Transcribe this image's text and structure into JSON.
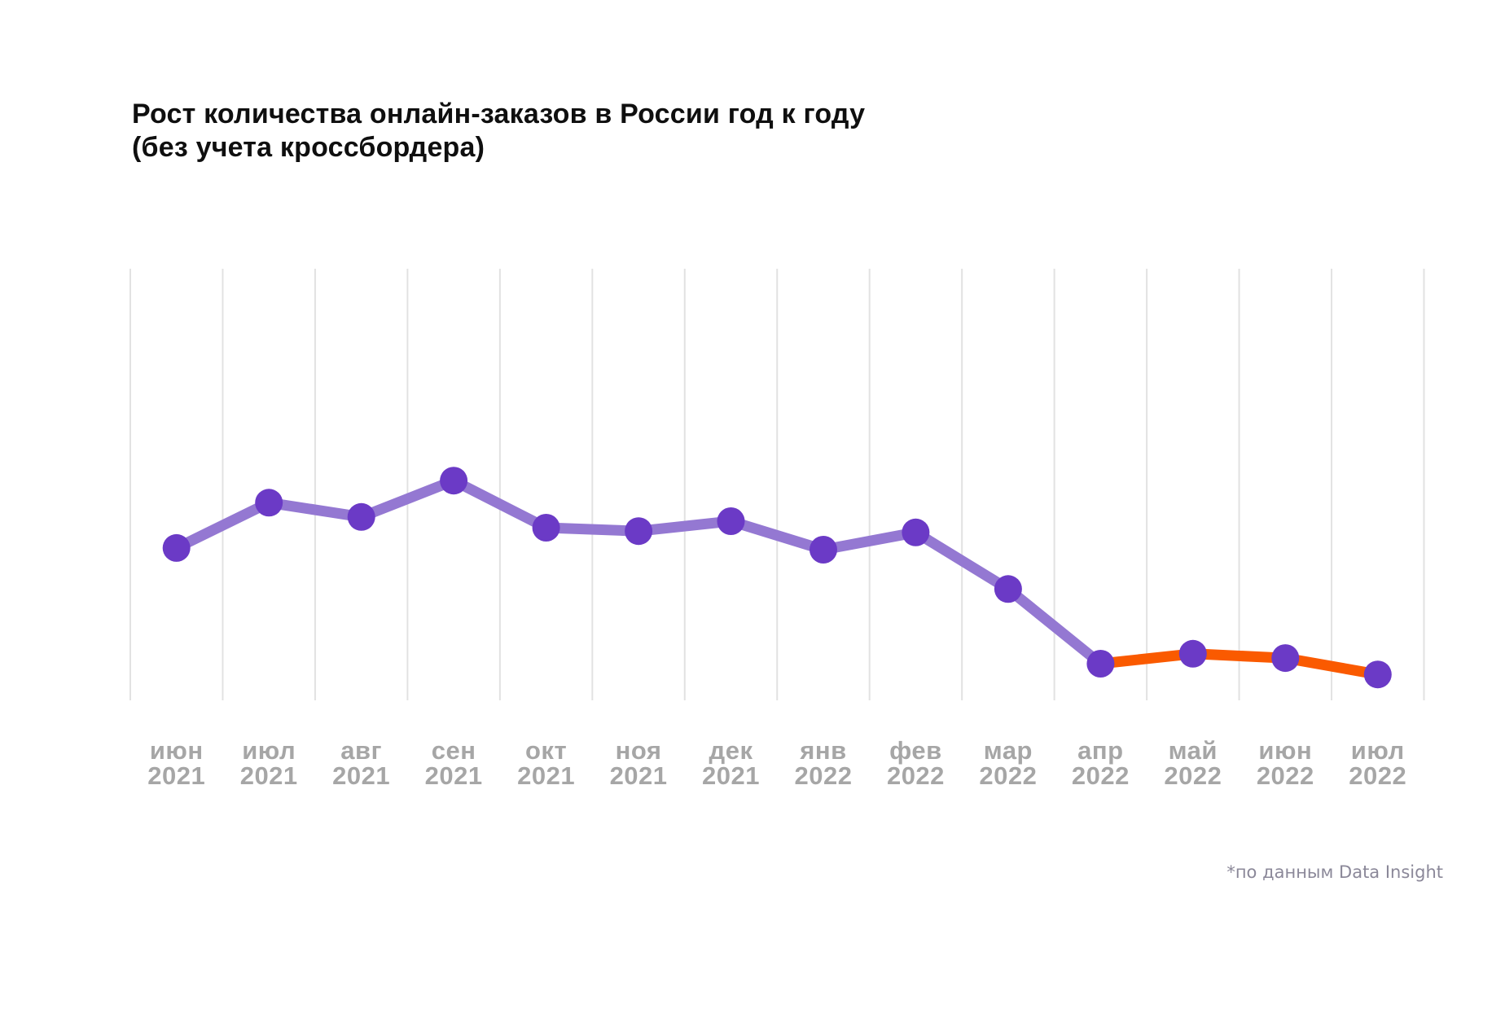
{
  "header": {
    "title_line1": "Рост количества онлайн-заказов в России год к году",
    "title_line2": "(без учета кроссбордера)"
  },
  "footer": {
    "note": "*по данным Data Insight"
  },
  "colors": {
    "background": "#ffffff",
    "title": "#0f0f0f",
    "grid": "#e2e2e2",
    "line_main": "#9478d2",
    "line_highlight": "#fa5a00",
    "point": "#6b3ac6",
    "axis_label": "#a6a6a6",
    "footnote": "#8b8899"
  },
  "chart_data": {
    "type": "line",
    "title": "Рост количества онлайн-заказов в России год к году (без учета кроссбордера)",
    "xlabel": "",
    "ylabel": "",
    "x": [
      "июн 2021",
      "июл 2021",
      "авг 2021",
      "сен 2021",
      "окт 2021",
      "ноя 2021",
      "дек 2021",
      "янв 2022",
      "фев 2022",
      "мар 2022",
      "апр 2022",
      "май 2022",
      "июн 2022",
      "июл 2022"
    ],
    "values_norm": [
      0.353,
      0.458,
      0.425,
      0.509,
      0.4,
      0.392,
      0.415,
      0.349,
      0.389,
      0.258,
      0.085,
      0.108,
      0.098,
      0.06
    ],
    "values_note": "Ось Y не подписана на графике: значения нормированы 0-1 относительно высоты области построения",
    "highlight_segment": {
      "start_index": 10,
      "end_index": 13,
      "start_label": "апр 2022",
      "end_label": "июл 2022",
      "color": "#fa5a00"
    },
    "grid": "vertical-only",
    "legend": "none",
    "source_note": "*по данным Data Insight"
  }
}
